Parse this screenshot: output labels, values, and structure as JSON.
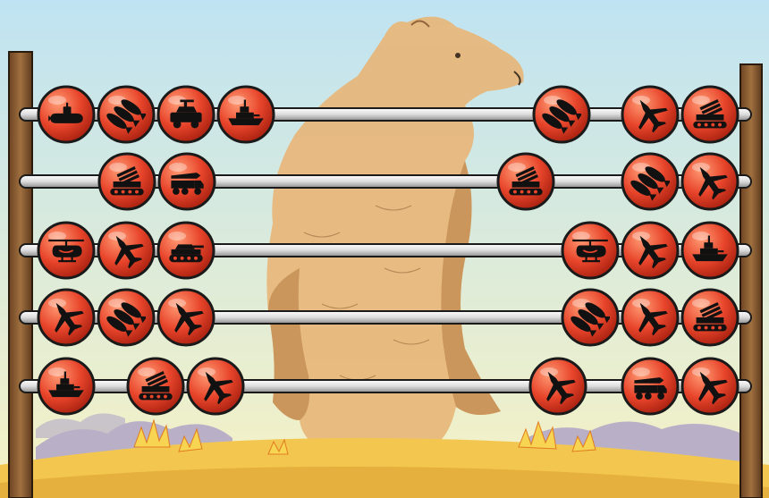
{
  "colors": {
    "sky_top": "#bfe3f2",
    "sky_bottom": "#f7f2c4",
    "bear_fur": "#e8b77a",
    "bear_shadow": "#c98f52",
    "hill": "#f3c74f",
    "hill_dark": "#d89a2c",
    "smoke": "#b9b0c8",
    "fire": "#f7d451",
    "bead_fill": "#e8452b",
    "bead_highlight": "#ff9a73",
    "bead_outline": "#1a1a1a",
    "rod": "#f2f2f2",
    "frame_wood": "#8a5a33"
  },
  "abacus": {
    "rows": [
      {
        "left": [
          "submarine-icon",
          "bombs-icon",
          "humvee-icon",
          "warship-icon"
        ],
        "right": [
          "bombs-icon",
          "fighter-jet-icon",
          "rocket-launcher-icon"
        ]
      },
      {
        "left": [
          "rocket-launcher-icon",
          "missile-truck-icon"
        ],
        "right": [
          "rocket-launcher-icon",
          "bombs-icon",
          "fighter-jet-icon"
        ]
      },
      {
        "left": [
          "helicopter-icon",
          "fighter-jet-icon",
          "tank-icon"
        ],
        "right": [
          "helicopter-icon",
          "fighter-jet-icon",
          "warship-icon"
        ]
      },
      {
        "left": [
          "fighter-jet-icon",
          "bombs-icon",
          "fighter-jet-icon"
        ],
        "right": [
          "bombs-icon",
          "fighter-jet-icon",
          "rocket-launcher-icon"
        ]
      },
      {
        "left": [
          "warship-icon",
          "rocket-launcher-icon",
          "fighter-jet-icon"
        ],
        "right": [
          "fighter-jet-icon",
          "missile-truck-icon",
          "fighter-jet-icon"
        ]
      }
    ]
  }
}
